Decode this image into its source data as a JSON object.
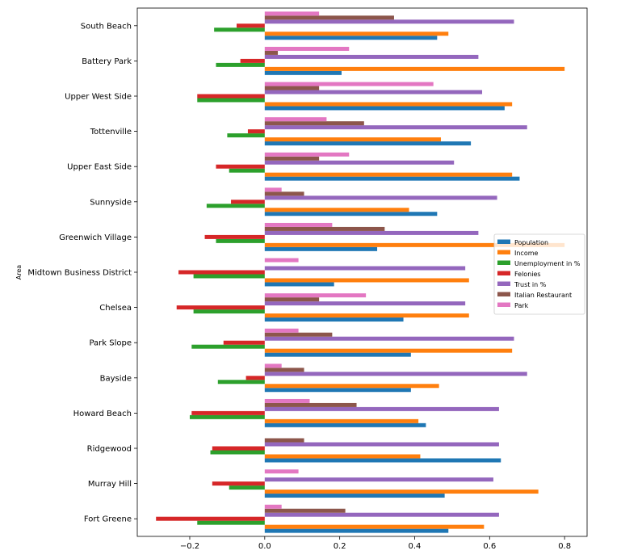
{
  "chart_data": {
    "type": "bar",
    "orientation": "horizontal",
    "ylabel": "Area",
    "xlabel": "",
    "title": "",
    "xlim": [
      -0.34,
      0.86
    ],
    "xticks": [
      "−0.2",
      "0.0",
      "0.2",
      "0.4",
      "0.6",
      "0.8"
    ],
    "xtick_values": [
      -0.2,
      0.0,
      0.2,
      0.4,
      0.6,
      0.8
    ],
    "grid": false,
    "legend_position": "center-right",
    "categories": [
      "Fort Greene",
      "Murray Hill",
      "Ridgewood",
      "Howard Beach",
      "Bayside",
      "Park Slope",
      "Chelsea",
      "Midtown Business District",
      "Greenwich Village",
      "Sunnyside",
      "Upper East Side",
      "Tottenville",
      "Upper West Side",
      "Battery Park",
      "South Beach"
    ],
    "series": [
      {
        "name": "Population",
        "color": "#1f77b4",
        "values": [
          0.49,
          0.48,
          0.63,
          0.43,
          0.39,
          0.39,
          0.37,
          0.185,
          0.3,
          0.46,
          0.68,
          0.55,
          0.64,
          0.205,
          0.46
        ]
      },
      {
        "name": "Income",
        "color": "#ff7f0e",
        "values": [
          0.585,
          0.73,
          0.415,
          0.41,
          0.465,
          0.66,
          0.545,
          0.545,
          0.8,
          0.385,
          0.66,
          0.47,
          0.66,
          0.8,
          0.49
        ]
      },
      {
        "name": "Unemployment in %",
        "color": "#2ca02c",
        "values": [
          -0.18,
          -0.095,
          -0.145,
          -0.2,
          -0.125,
          -0.195,
          -0.19,
          -0.19,
          -0.13,
          -0.155,
          -0.095,
          -0.1,
          -0.18,
          -0.13,
          -0.135
        ]
      },
      {
        "name": "Felonies",
        "color": "#d62728",
        "values": [
          -0.29,
          -0.14,
          -0.14,
          -0.195,
          -0.05,
          -0.11,
          -0.235,
          -0.23,
          -0.16,
          -0.09,
          -0.13,
          -0.045,
          -0.18,
          -0.065,
          -0.075
        ]
      },
      {
        "name": "Trust in %",
        "color": "#9467bd",
        "values": [
          0.625,
          0.61,
          0.625,
          0.625,
          0.7,
          0.665,
          0.535,
          0.535,
          0.57,
          0.62,
          0.505,
          0.7,
          0.58,
          0.57,
          0.665
        ]
      },
      {
        "name": "Italian Restaurant",
        "color": "#8c564b",
        "values": [
          0.215,
          0.0,
          0.105,
          0.245,
          0.105,
          0.18,
          0.145,
          0.0,
          0.32,
          0.105,
          0.145,
          0.265,
          0.145,
          0.035,
          0.345
        ]
      },
      {
        "name": "Park",
        "color": "#e377c2",
        "values": [
          0.045,
          0.09,
          0.0,
          0.12,
          0.045,
          0.09,
          0.27,
          0.09,
          0.18,
          0.045,
          0.225,
          0.165,
          0.45,
          0.225,
          0.145
        ]
      }
    ]
  }
}
